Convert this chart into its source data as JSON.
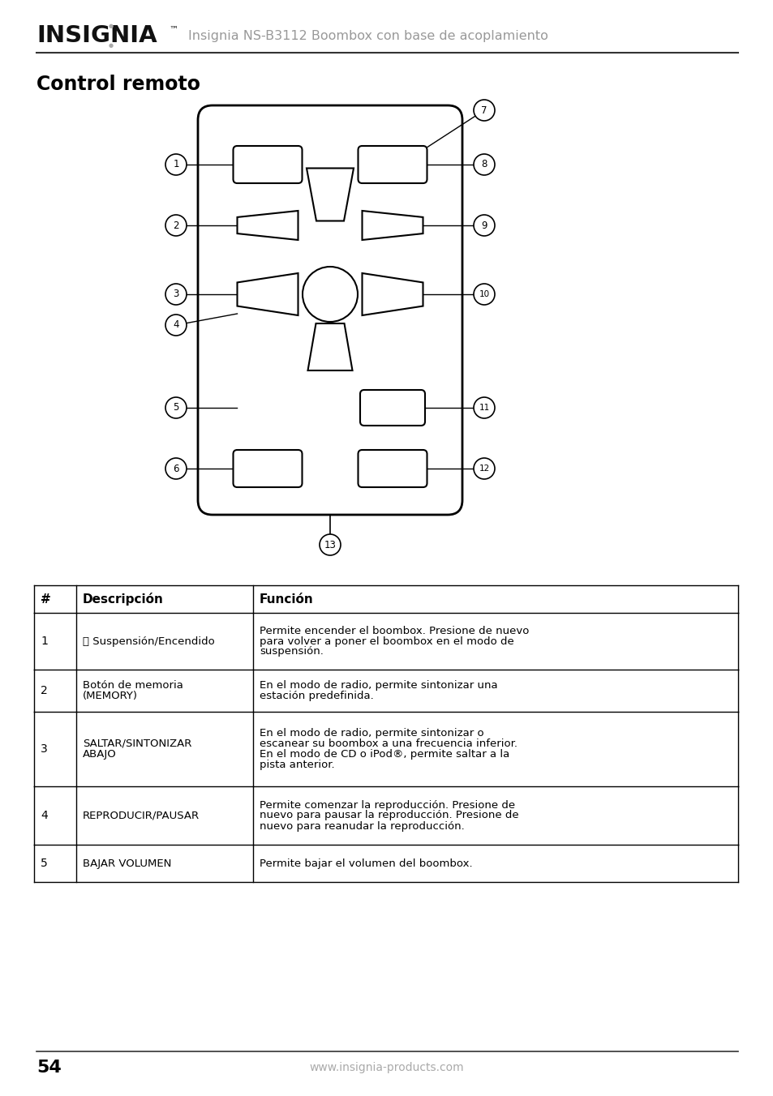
{
  "page_title": "Control remoto",
  "header_brand": "INSIGNIA",
  "header_subtitle": "Insignia NS-B3112 Boombox con base de acoplamiento",
  "page_number": "54",
  "footer_url": "www.insignia-products.com",
  "table_headers": [
    "#",
    "Descripción",
    "Función"
  ],
  "table_rows": [
    [
      "1",
      "⏻ Suspensión/Encendido",
      "Permite encender el boombox. Presione de nuevo\npara volver a poner el boombox en el modo de\nsuspensión."
    ],
    [
      "2",
      "Botón de memoria\n(MEMORY)",
      "En el modo de radio, permite sintonizar una\nestación predefinida."
    ],
    [
      "3",
      "SALTAR/SINTONIZAR\nABAJO",
      "En el modo de radio, permite sintonizar o\nescanear su boombox a una frecuencia inferior.\nEn el modo de CD o iPod®, permite saltar a la\npista anterior."
    ],
    [
      "4",
      "REPRODUCIR/PAUSAR",
      "Permite comenzar la reproducción. Presione de\nnuevo para pausar la reproducción. Presione de\nnuevo para reanudar la reproducción."
    ],
    [
      "5",
      "BAJAR VOLUMEN",
      "Permite bajar el volumen del boombox."
    ]
  ],
  "bg_color": "#ffffff",
  "text_color": "#000000",
  "gray_color": "#888888",
  "line_color": "#000000"
}
